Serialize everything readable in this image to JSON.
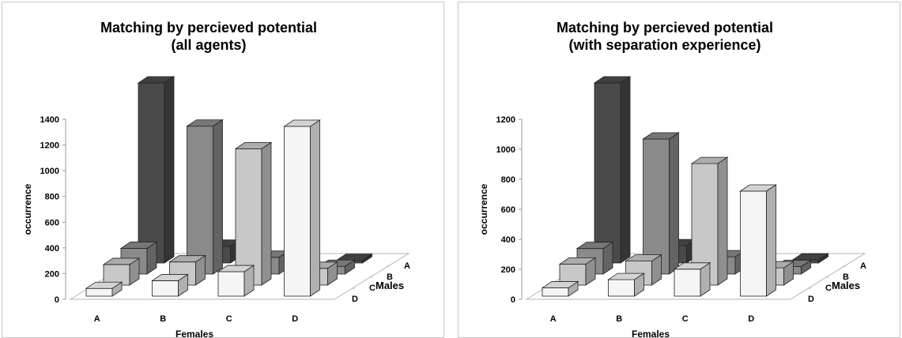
{
  "chart_data": [
    {
      "type": "bar3d",
      "title_lines": [
        "Matching by percieved potential",
        "(all agents)"
      ],
      "xlabel": "Females",
      "ylabel": "occurrence",
      "zlabel": "Males",
      "categories": [
        "A",
        "B",
        "C",
        "D"
      ],
      "rows": [
        "A",
        "B",
        "C",
        "D"
      ],
      "ylim": [
        0,
        1400
      ],
      "yticks": [
        0,
        200,
        400,
        600,
        800,
        1000,
        1200,
        1400
      ],
      "series": [
        {
          "name": "A",
          "color": "#4a4a4a",
          "values": [
            1400,
            130,
            15,
            20
          ]
        },
        {
          "name": "B",
          "color": "#8a8a8a",
          "values": [
            200,
            1150,
            130,
            60
          ]
        },
        {
          "name": "C",
          "color": "#c8c8c8",
          "values": [
            160,
            180,
            1060,
            130
          ]
        },
        {
          "name": "D",
          "color": "#f5f5f5",
          "values": [
            60,
            120,
            190,
            1320
          ]
        }
      ]
    },
    {
      "type": "bar3d",
      "title_lines": [
        "Matching by percieved potential",
        "(with separation experience)"
      ],
      "xlabel": "Females",
      "ylabel": "occurrence",
      "zlabel": "Males",
      "categories": [
        "A",
        "B",
        "C",
        "D"
      ],
      "rows": [
        "A",
        "B",
        "C",
        "D"
      ],
      "ylim": [
        0,
        1200
      ],
      "yticks": [
        0,
        200,
        400,
        600,
        800,
        1000,
        1200
      ],
      "series": [
        {
          "name": "A",
          "color": "#4a4a4a",
          "values": [
            1200,
            115,
            15,
            20
          ]
        },
        {
          "name": "B",
          "color": "#8a8a8a",
          "values": [
            170,
            900,
            115,
            50
          ]
        },
        {
          "name": "C",
          "color": "#c8c8c8",
          "values": [
            140,
            160,
            810,
            115
          ]
        },
        {
          "name": "D",
          "color": "#f5f5f5",
          "values": [
            55,
            110,
            180,
            700
          ]
        }
      ]
    }
  ]
}
